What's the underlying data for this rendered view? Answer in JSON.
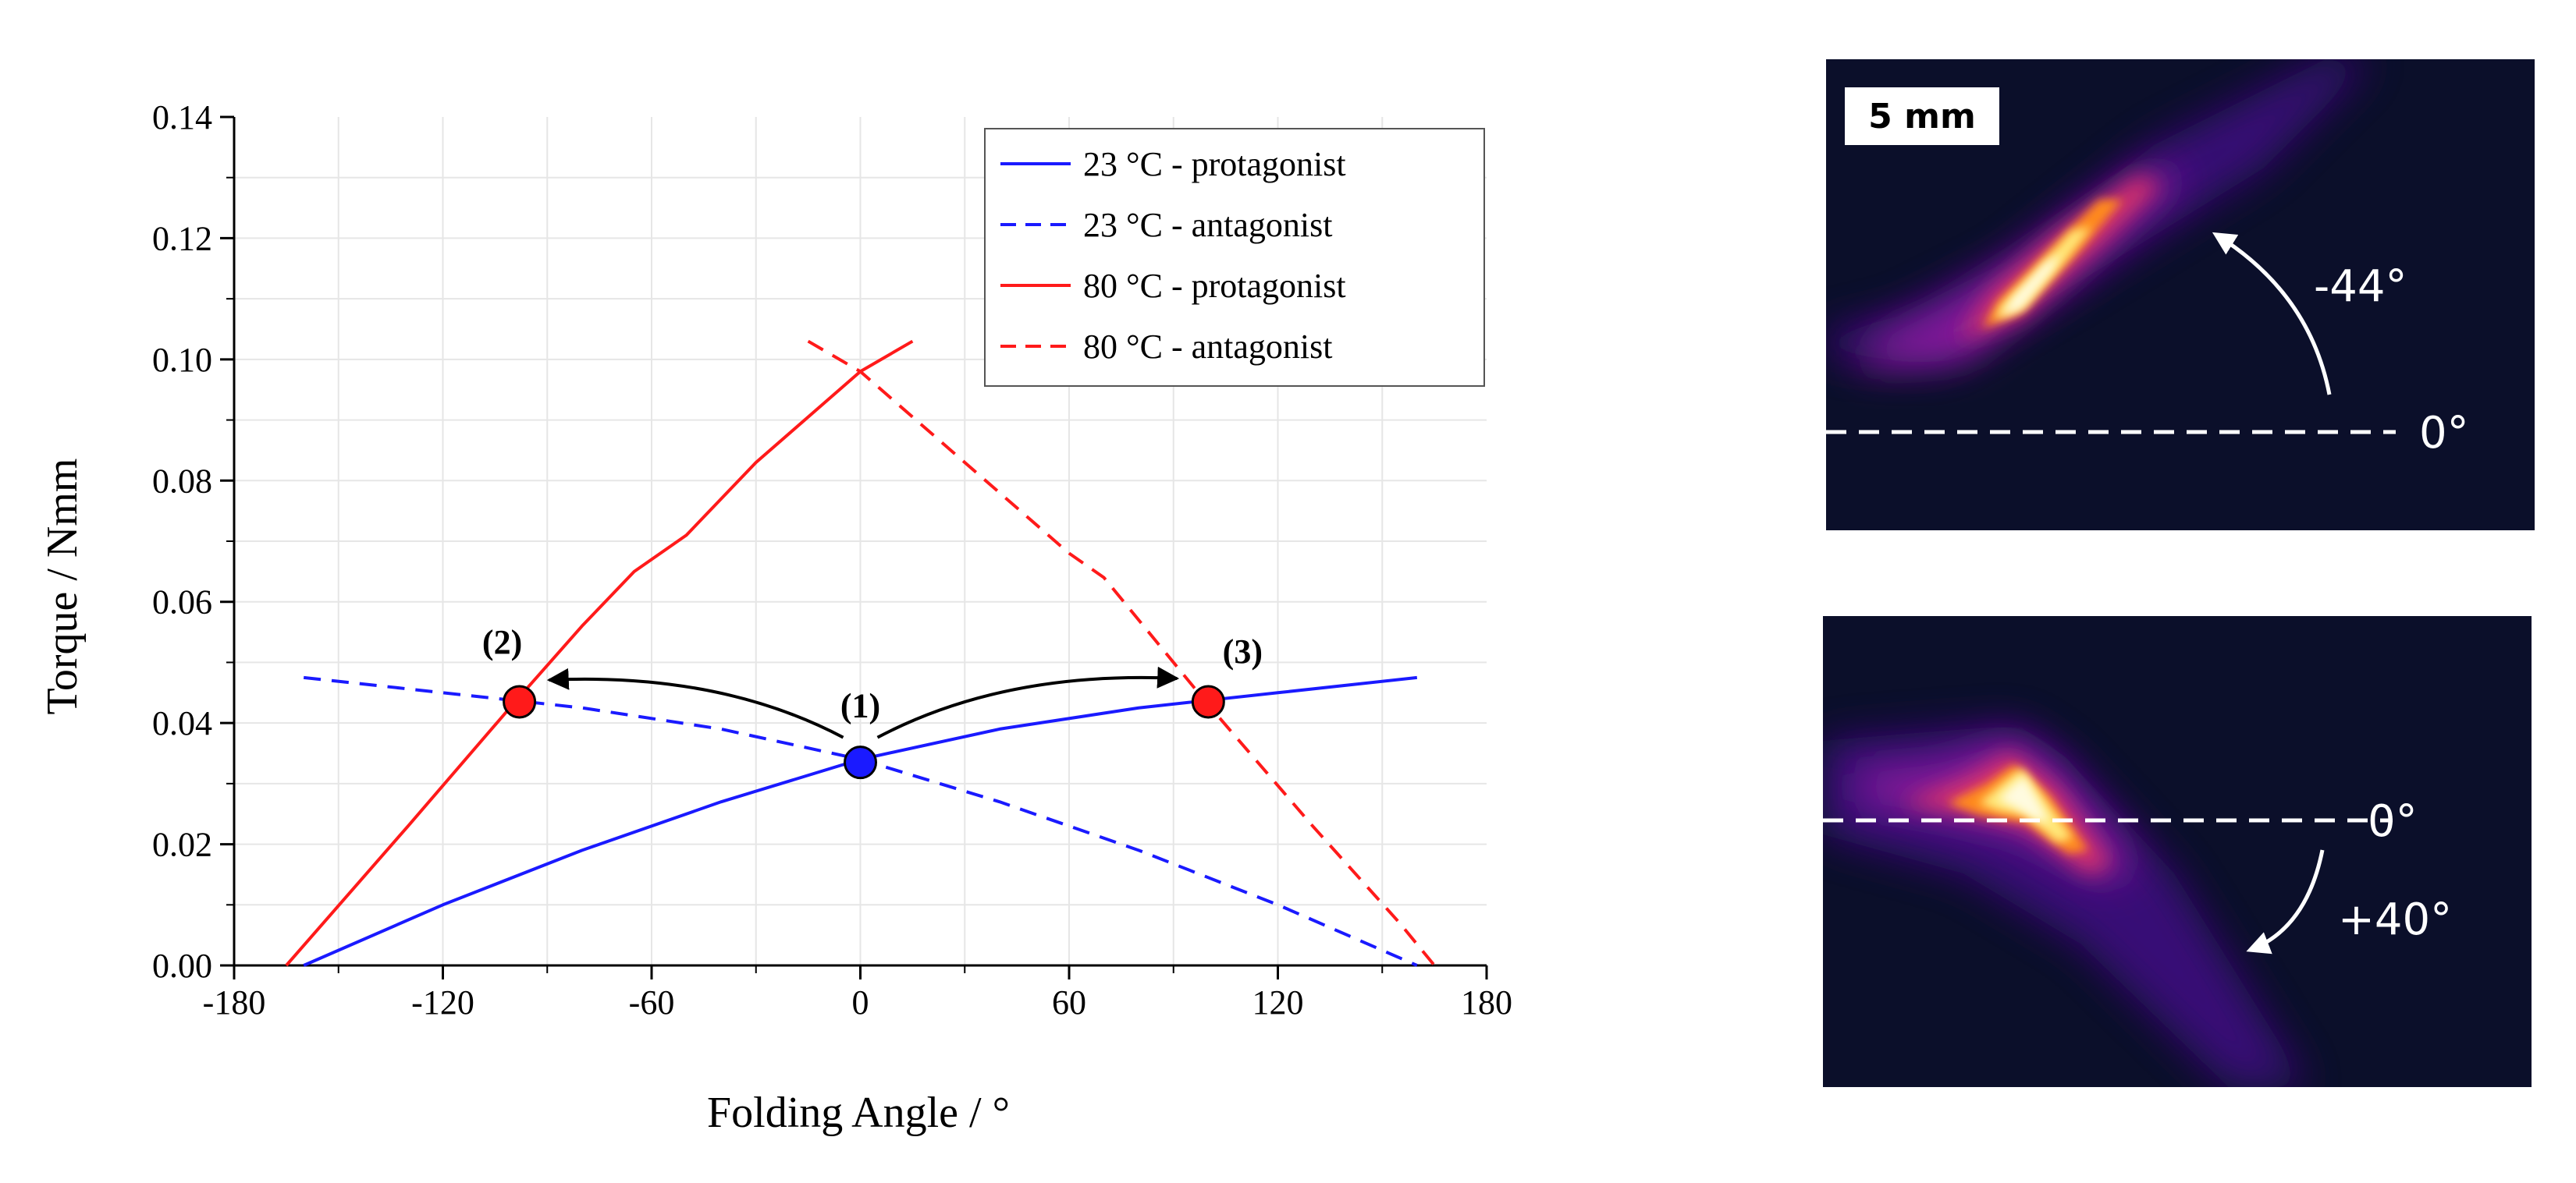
{
  "chart_data": {
    "type": "line",
    "xlabel": "Folding Angle / °",
    "ylabel": "Torque / Nmm",
    "xlim": [
      -180,
      180
    ],
    "ylim": [
      0,
      0.14
    ],
    "xticks": [
      "-180",
      "-120",
      "-60",
      "0",
      "60",
      "120",
      "180"
    ],
    "xtick_values": [
      -180,
      -120,
      -60,
      0,
      60,
      120,
      180
    ],
    "yticks": [
      "0.00",
      "0.02",
      "0.04",
      "0.06",
      "0.08",
      "0.10",
      "0.12",
      "0.14"
    ],
    "ytick_values": [
      0,
      0.02,
      0.04,
      0.06,
      0.08,
      0.1,
      0.12,
      0.14
    ],
    "grid": true,
    "legend_position": "top-right",
    "series": [
      {
        "name": "23 °C - protagonist",
        "color": "#1a1aff",
        "style": "solid",
        "x": [
          -160,
          -120,
          -80,
          -40,
          0,
          40,
          80,
          120,
          160
        ],
        "y": [
          0.0,
          0.01,
          0.019,
          0.027,
          0.034,
          0.039,
          0.0425,
          0.045,
          0.0475
        ]
      },
      {
        "name": "23 °C - antagonist",
        "color": "#1a1aff",
        "style": "dashed",
        "x": [
          -160,
          -120,
          -80,
          -40,
          0,
          40,
          80,
          120,
          160
        ],
        "y": [
          0.0475,
          0.045,
          0.0425,
          0.039,
          0.034,
          0.027,
          0.019,
          0.01,
          0.0
        ]
      },
      {
        "name": "80 °C - protagonist",
        "color": "#ff1a1a",
        "style": "solid",
        "x": [
          -165,
          -130,
          -100,
          -80,
          -65,
          -50,
          -30,
          -10,
          0,
          15
        ],
        "y": [
          0.0,
          0.023,
          0.043,
          0.056,
          0.065,
          0.071,
          0.083,
          0.093,
          0.098,
          0.103
        ]
      },
      {
        "name": "80 °C - antagonist",
        "color": "#ff1a1a",
        "style": "dashed",
        "x": [
          -15,
          0,
          30,
          60,
          70,
          100,
          130,
          155,
          165
        ],
        "y": [
          0.103,
          0.098,
          0.083,
          0.068,
          0.064,
          0.043,
          0.023,
          0.007,
          0.0
        ]
      }
    ],
    "markers": [
      {
        "label": "(1)",
        "x": 0,
        "y": 0.0335,
        "color": "#1a1aff"
      },
      {
        "label": "(2)",
        "x": -98,
        "y": 0.0435,
        "color": "#ff1a1a"
      },
      {
        "label": "(3)",
        "x": 100,
        "y": 0.0435,
        "color": "#ff1a1a"
      }
    ]
  },
  "thermal_images": {
    "scale_bar": "5 mm",
    "top": {
      "reference_angle": "0°",
      "fold_angle": "-44°"
    },
    "bottom": {
      "reference_angle": "0°",
      "fold_angle": "+40°"
    }
  }
}
